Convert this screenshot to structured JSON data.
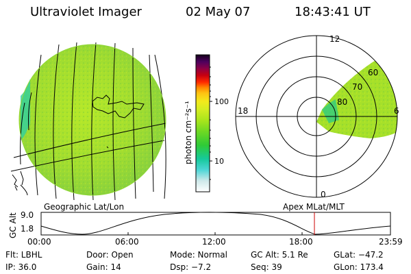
{
  "header": {
    "instrument": "Ultraviolet Imager",
    "date": "02 May 07",
    "time": "18:43:41 UT"
  },
  "colorbar": {
    "unit_label": "photon cm⁻²s⁻¹",
    "ticks": [
      "100",
      "10"
    ],
    "colors": [
      "#eeeeee",
      "#bfe8e0",
      "#3fd0d0",
      "#12c8a0",
      "#33cc33",
      "#77dd22",
      "#aae81a",
      "#ccee22",
      "#eeee22",
      "#ffcc11",
      "#ff8800",
      "#ff2200",
      "#cc0000",
      "#990033",
      "#660066",
      "#1a0033"
    ]
  },
  "polar_plot": {
    "hour_labels": {
      "top": "12",
      "left": "18",
      "right": "6",
      "bottom": "0"
    },
    "lat_labels": [
      "60",
      "70",
      "80"
    ]
  },
  "panel_labels": {
    "geographic": "Geographic Lat/Lon",
    "apex": "Apex MLat/MLT"
  },
  "altitude_plot": {
    "axis_label": "GC Alt",
    "y_ticks": [
      "9.0",
      "1.8"
    ],
    "x_ticks": [
      "00:00",
      "06:00",
      "12:00",
      "18:00",
      "23:59"
    ]
  },
  "info": {
    "filter": "Flt: LBHL",
    "door": "Door: Open",
    "mode": "Mode: Normal",
    "gc_alt": "GC Alt: 5.1 Re",
    "glat": "GLat: −47.2",
    "ip": "IP: 36.0",
    "gain": "Gain: 14",
    "dsp": "Dsp:   −7.2",
    "seq": "Seq: 39",
    "glon": "GLon: 173.4"
  },
  "colors": {
    "image_green": "#a6e02a",
    "current_time_marker": "#cc0000"
  }
}
